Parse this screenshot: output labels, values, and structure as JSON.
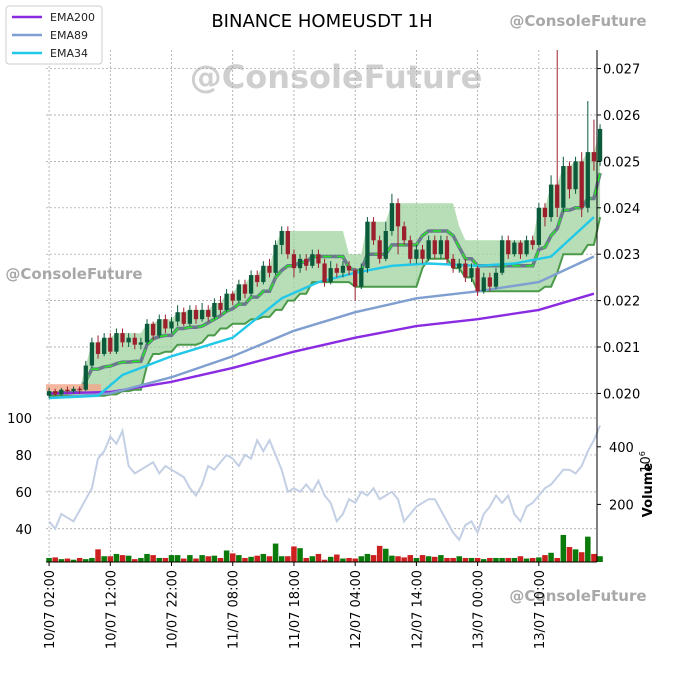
{
  "chart_data": {
    "type": "candlestick",
    "title": "BINANCE HOMEUSDT 1H",
    "watermark": "@ConsoleFuture",
    "price_axis": {
      "ylim": [
        0.0196,
        0.0274
      ],
      "ticks": [
        "0.020",
        "0.021",
        "0.022",
        "0.023",
        "0.024",
        "0.025",
        "0.026",
        "0.027"
      ],
      "tick_values": [
        0.02,
        0.021,
        0.022,
        0.023,
        0.024,
        0.025,
        0.026,
        0.027
      ]
    },
    "x_axis": {
      "labels": [
        "10/07 02:00",
        "10/07 12:00",
        "10/07 22:00",
        "11/07 08:00",
        "11/07 18:00",
        "12/07 04:00",
        "12/07 14:00",
        "13/07 00:00",
        "13/07 10:00"
      ],
      "label_hours": [
        0,
        10,
        20,
        30,
        40,
        50,
        60,
        70,
        80
      ],
      "hours_total": 89
    },
    "legend": {
      "placement": "top-left",
      "entries": [
        {
          "name": "EMA200",
          "color": "#8a2be2"
        },
        {
          "name": "EMA89",
          "color": "#7f9fd0"
        },
        {
          "name": "EMA34",
          "color": "#22c8e8"
        }
      ]
    },
    "series": [
      {
        "name": "EMA200",
        "color": "#8a2be2",
        "points": [
          [
            0,
            0.02
          ],
          [
            10,
            0.02003
          ],
          [
            20,
            0.02025
          ],
          [
            30,
            0.02055
          ],
          [
            40,
            0.0209
          ],
          [
            50,
            0.0212
          ],
          [
            60,
            0.02145
          ],
          [
            70,
            0.0216
          ],
          [
            80,
            0.0218
          ],
          [
            89,
            0.02215
          ]
        ]
      },
      {
        "name": "EMA89",
        "color": "#7f9fd0",
        "points": [
          [
            0,
            0.0199
          ],
          [
            10,
            0.02
          ],
          [
            20,
            0.02035
          ],
          [
            30,
            0.0208
          ],
          [
            40,
            0.02135
          ],
          [
            50,
            0.02175
          ],
          [
            60,
            0.02205
          ],
          [
            70,
            0.0222
          ],
          [
            80,
            0.0224
          ],
          [
            89,
            0.02295
          ]
        ]
      },
      {
        "name": "EMA34",
        "color": "#22c8e8",
        "points": [
          [
            0,
            0.0199
          ],
          [
            8,
            0.01995
          ],
          [
            12,
            0.0204
          ],
          [
            20,
            0.0208
          ],
          [
            30,
            0.0212
          ],
          [
            38,
            0.02205
          ],
          [
            44,
            0.0224
          ],
          [
            50,
            0.0226
          ],
          [
            56,
            0.02275
          ],
          [
            62,
            0.0228
          ],
          [
            70,
            0.02275
          ],
          [
            76,
            0.0228
          ],
          [
            82,
            0.02295
          ],
          [
            89,
            0.0238
          ]
        ]
      }
    ],
    "candles": [
      [
        0.01995,
        0.02005,
        0.0199,
        0.02012
      ],
      [
        0.02005,
        0.01998,
        0.01995,
        0.0201
      ],
      [
        0.01998,
        0.02008,
        0.01995,
        0.02012
      ],
      [
        0.02008,
        0.02005,
        0.02,
        0.02015
      ],
      [
        0.02005,
        0.0201,
        0.02,
        0.02015
      ],
      [
        0.0201,
        0.02008,
        0.02,
        0.02015
      ],
      [
        0.02008,
        0.0206,
        0.02005,
        0.0207
      ],
      [
        0.0206,
        0.0211,
        0.02055,
        0.0212
      ],
      [
        0.0211,
        0.02085,
        0.02075,
        0.02125
      ],
      [
        0.02085,
        0.0212,
        0.0208,
        0.0213
      ],
      [
        0.0212,
        0.0209,
        0.02085,
        0.0213
      ],
      [
        0.0209,
        0.0213,
        0.02085,
        0.0214
      ],
      [
        0.0213,
        0.0211,
        0.021,
        0.0214
      ],
      [
        0.0211,
        0.0212,
        0.021,
        0.0213
      ],
      [
        0.0212,
        0.02105,
        0.02095,
        0.0213
      ],
      [
        0.02105,
        0.0211,
        0.02095,
        0.0212
      ],
      [
        0.0211,
        0.0215,
        0.02105,
        0.0216
      ],
      [
        0.0215,
        0.02125,
        0.02115,
        0.02155
      ],
      [
        0.02125,
        0.0216,
        0.0212,
        0.0217
      ],
      [
        0.0216,
        0.0214,
        0.0213,
        0.0217
      ],
      [
        0.0214,
        0.02155,
        0.0213,
        0.02165
      ],
      [
        0.02155,
        0.02175,
        0.02145,
        0.0219
      ],
      [
        0.02175,
        0.0215,
        0.02145,
        0.02185
      ],
      [
        0.0215,
        0.0218,
        0.02145,
        0.0219
      ],
      [
        0.0218,
        0.0216,
        0.0215,
        0.0219
      ],
      [
        0.0216,
        0.0218,
        0.02155,
        0.02195
      ],
      [
        0.0218,
        0.02165,
        0.02155,
        0.0219
      ],
      [
        0.02165,
        0.02195,
        0.0216,
        0.02205
      ],
      [
        0.02195,
        0.0218,
        0.0217,
        0.0221
      ],
      [
        0.0218,
        0.02215,
        0.02175,
        0.02225
      ],
      [
        0.02215,
        0.022,
        0.0219,
        0.0222
      ],
      [
        0.022,
        0.02235,
        0.02195,
        0.02245
      ],
      [
        0.02235,
        0.02215,
        0.02205,
        0.02245
      ],
      [
        0.02215,
        0.02255,
        0.0221,
        0.02265
      ],
      [
        0.02255,
        0.0224,
        0.0223,
        0.02265
      ],
      [
        0.0224,
        0.02275,
        0.02235,
        0.02285
      ],
      [
        0.02275,
        0.0226,
        0.0225,
        0.0229
      ],
      [
        0.0226,
        0.0232,
        0.02255,
        0.0233
      ],
      [
        0.0232,
        0.0235,
        0.023,
        0.0236
      ],
      [
        0.0235,
        0.023,
        0.0229,
        0.0236
      ],
      [
        0.023,
        0.0227,
        0.0225,
        0.0231
      ],
      [
        0.0227,
        0.0229,
        0.0226,
        0.023
      ],
      [
        0.0229,
        0.02275,
        0.02265,
        0.023
      ],
      [
        0.02275,
        0.023,
        0.0227,
        0.0231
      ],
      [
        0.023,
        0.0228,
        0.0227,
        0.0231
      ],
      [
        0.0228,
        0.0224,
        0.0223,
        0.0229
      ],
      [
        0.0224,
        0.0227,
        0.02235,
        0.02285
      ],
      [
        0.0227,
        0.0226,
        0.0225,
        0.0228
      ],
      [
        0.0226,
        0.02275,
        0.0225,
        0.02285
      ],
      [
        0.02275,
        0.02265,
        0.02255,
        0.02285
      ],
      [
        0.02265,
        0.0223,
        0.022,
        0.0227
      ],
      [
        0.0223,
        0.0227,
        0.02225,
        0.0228
      ],
      [
        0.0227,
        0.0237,
        0.0226,
        0.0238
      ],
      [
        0.0237,
        0.0233,
        0.0232,
        0.0238
      ],
      [
        0.0233,
        0.0229,
        0.0228,
        0.0234
      ],
      [
        0.0229,
        0.0235,
        0.02285,
        0.0237
      ],
      [
        0.0235,
        0.0241,
        0.0234,
        0.0243
      ],
      [
        0.0241,
        0.0236,
        0.023,
        0.0242
      ],
      [
        0.0236,
        0.0233,
        0.0232,
        0.0237
      ],
      [
        0.0233,
        0.0229,
        0.0228,
        0.0234
      ],
      [
        0.0229,
        0.0231,
        0.0228,
        0.0232
      ],
      [
        0.0231,
        0.0229,
        0.0228,
        0.0232
      ],
      [
        0.0229,
        0.0233,
        0.02285,
        0.0234
      ],
      [
        0.0233,
        0.023,
        0.0229,
        0.0234
      ],
      [
        0.023,
        0.0233,
        0.0229,
        0.0234
      ],
      [
        0.0233,
        0.0229,
        0.0228,
        0.0234
      ],
      [
        0.0229,
        0.0227,
        0.0226,
        0.023
      ],
      [
        0.0227,
        0.0228,
        0.0226,
        0.0229
      ],
      [
        0.0228,
        0.0225,
        0.0224,
        0.0229
      ],
      [
        0.0225,
        0.0227,
        0.0224,
        0.0228
      ],
      [
        0.0227,
        0.0222,
        0.0221,
        0.02275
      ],
      [
        0.0222,
        0.0225,
        0.02215,
        0.0226
      ],
      [
        0.0225,
        0.0223,
        0.0222,
        0.0226
      ],
      [
        0.0223,
        0.0226,
        0.02225,
        0.0227
      ],
      [
        0.0226,
        0.0233,
        0.02255,
        0.0234
      ],
      [
        0.0233,
        0.023,
        0.0229,
        0.0234
      ],
      [
        0.023,
        0.02325,
        0.02295,
        0.0233
      ],
      [
        0.02325,
        0.023,
        0.0229,
        0.0233
      ],
      [
        0.023,
        0.0233,
        0.02295,
        0.0234
      ],
      [
        0.0233,
        0.0232,
        0.0231,
        0.0234
      ],
      [
        0.0232,
        0.024,
        0.02315,
        0.0241
      ],
      [
        0.024,
        0.0238,
        0.0236,
        0.0241
      ],
      [
        0.0238,
        0.0245,
        0.0237,
        0.0247
      ],
      [
        0.0245,
        0.024,
        0.0238,
        0.0274
      ],
      [
        0.024,
        0.0249,
        0.0239,
        0.0251
      ],
      [
        0.0249,
        0.0244,
        0.0242,
        0.025
      ],
      [
        0.0244,
        0.025,
        0.0243,
        0.0251
      ],
      [
        0.025,
        0.024,
        0.0238,
        0.0252
      ],
      [
        0.024,
        0.0252,
        0.0239,
        0.0263
      ],
      [
        0.0252,
        0.025,
        0.0248,
        0.0259
      ],
      [
        0.025,
        0.0257,
        0.0249,
        0.0258
      ]
    ],
    "volume_axis": {
      "label": "Volume",
      "exponent": "6",
      "ticks": [
        "200",
        "400"
      ],
      "tick_values": [
        200,
        400
      ],
      "ylim": [
        0,
        500
      ]
    },
    "volume": [
      14,
      16,
      10,
      12,
      8,
      14,
      10,
      14,
      44,
      20,
      20,
      28,
      24,
      22,
      10,
      14,
      28,
      24,
      14,
      14,
      24,
      24,
      12,
      24,
      12,
      24,
      20,
      22,
      14,
      40,
      30,
      24,
      14,
      18,
      22,
      28,
      20,
      64,
      20,
      20,
      54,
      48,
      14,
      20,
      28,
      8,
      18,
      26,
      12,
      14,
      12,
      20,
      28,
      24,
      56,
      46,
      22,
      20,
      16,
      24,
      14,
      24,
      20,
      18,
      24,
      14,
      14,
      20,
      14,
      14,
      14,
      10,
      14,
      14,
      14,
      14,
      14,
      20,
      12,
      14,
      16,
      24,
      32,
      14,
      94,
      52,
      44,
      34,
      88,
      28,
      20
    ],
    "oscillator": {
      "ylim": [
        22,
        100
      ],
      "ticks": [
        "40",
        "60",
        "80",
        "100"
      ],
      "tick_values": [
        40,
        60,
        80,
        100
      ],
      "values": [
        44,
        40,
        48,
        46,
        44,
        50,
        56,
        62,
        78,
        82,
        90,
        86,
        93,
        74,
        70,
        72,
        74,
        76,
        70,
        74,
        72,
        70,
        68,
        62,
        58,
        64,
        74,
        72,
        76,
        80,
        78,
        74,
        80,
        78,
        88,
        82,
        88,
        80,
        72,
        60,
        62,
        60,
        64,
        60,
        66,
        58,
        54,
        44,
        48,
        56,
        54,
        60,
        58,
        62,
        56,
        58,
        60,
        56,
        44,
        48,
        52,
        54,
        56,
        56,
        50,
        44,
        38,
        34,
        42,
        44,
        38,
        48,
        52,
        58,
        54,
        58,
        48,
        44,
        52,
        54,
        58,
        62,
        64,
        68,
        72,
        72,
        70,
        74,
        82,
        88,
        96
      ]
    }
  }
}
